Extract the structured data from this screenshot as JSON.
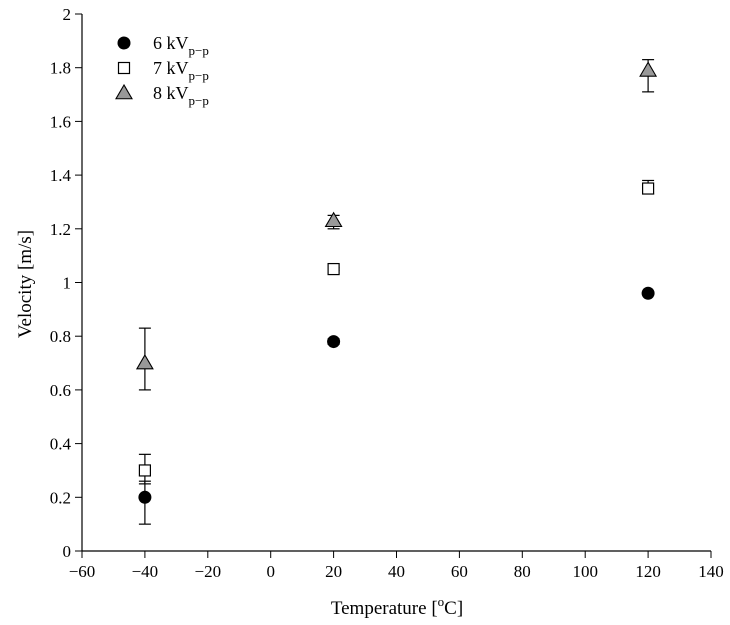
{
  "chart_data": {
    "type": "scatter",
    "xlabel": {
      "text": "Temperature [",
      "sup": "o",
      "tail": "C]"
    },
    "ylabel": "Velocity [m/s]",
    "xlim": [
      -60,
      140
    ],
    "ylim": [
      0,
      2
    ],
    "xticks": [
      -60,
      -40,
      -20,
      0,
      20,
      40,
      60,
      80,
      100,
      120,
      140
    ],
    "yticks": [
      0,
      0.2,
      0.4,
      0.6,
      0.8,
      1,
      1.2,
      1.4,
      1.6,
      1.8,
      2
    ],
    "xtick_labels": [
      "−60",
      "−40",
      "−20",
      "0",
      "20",
      "40",
      "60",
      "80",
      "100",
      "120",
      "140"
    ],
    "ytick_labels": [
      "0",
      "0.2",
      "0.4",
      "0.6",
      "0.8",
      "1",
      "1.2",
      "1.4",
      "1.6",
      "1.8",
      "2"
    ],
    "grid": false,
    "legend_position": "top-left",
    "series": [
      {
        "name": "6 kV",
        "subscript": "p−p",
        "marker": "filled-circle",
        "color": "#000000",
        "points": [
          {
            "x": -40,
            "y": 0.2,
            "err_low": 0.1,
            "err_high": 0.26
          },
          {
            "x": 20,
            "y": 0.78,
            "err_low": 0.77,
            "err_high": 0.79
          },
          {
            "x": 120,
            "y": 0.96,
            "err_low": 0.955,
            "err_high": 0.965
          }
        ]
      },
      {
        "name": "7 kV",
        "subscript": "p−p",
        "marker": "open-square",
        "color": "#000000",
        "points": [
          {
            "x": -40,
            "y": 0.3,
            "err_low": 0.25,
            "err_high": 0.36
          },
          {
            "x": 20,
            "y": 1.05,
            "err_low": 1.045,
            "err_high": 1.055
          },
          {
            "x": 120,
            "y": 1.35,
            "err_low": 1.33,
            "err_high": 1.38
          }
        ]
      },
      {
        "name": "8 kV",
        "subscript": "p−p",
        "marker": "gray-triangle",
        "color": "#999999",
        "points": [
          {
            "x": -40,
            "y": 0.7,
            "err_low": 0.6,
            "err_high": 0.83
          },
          {
            "x": 20,
            "y": 1.23,
            "err_low": 1.2,
            "err_high": 1.25
          },
          {
            "x": 120,
            "y": 1.79,
            "err_low": 1.71,
            "err_high": 1.83
          }
        ]
      }
    ]
  }
}
